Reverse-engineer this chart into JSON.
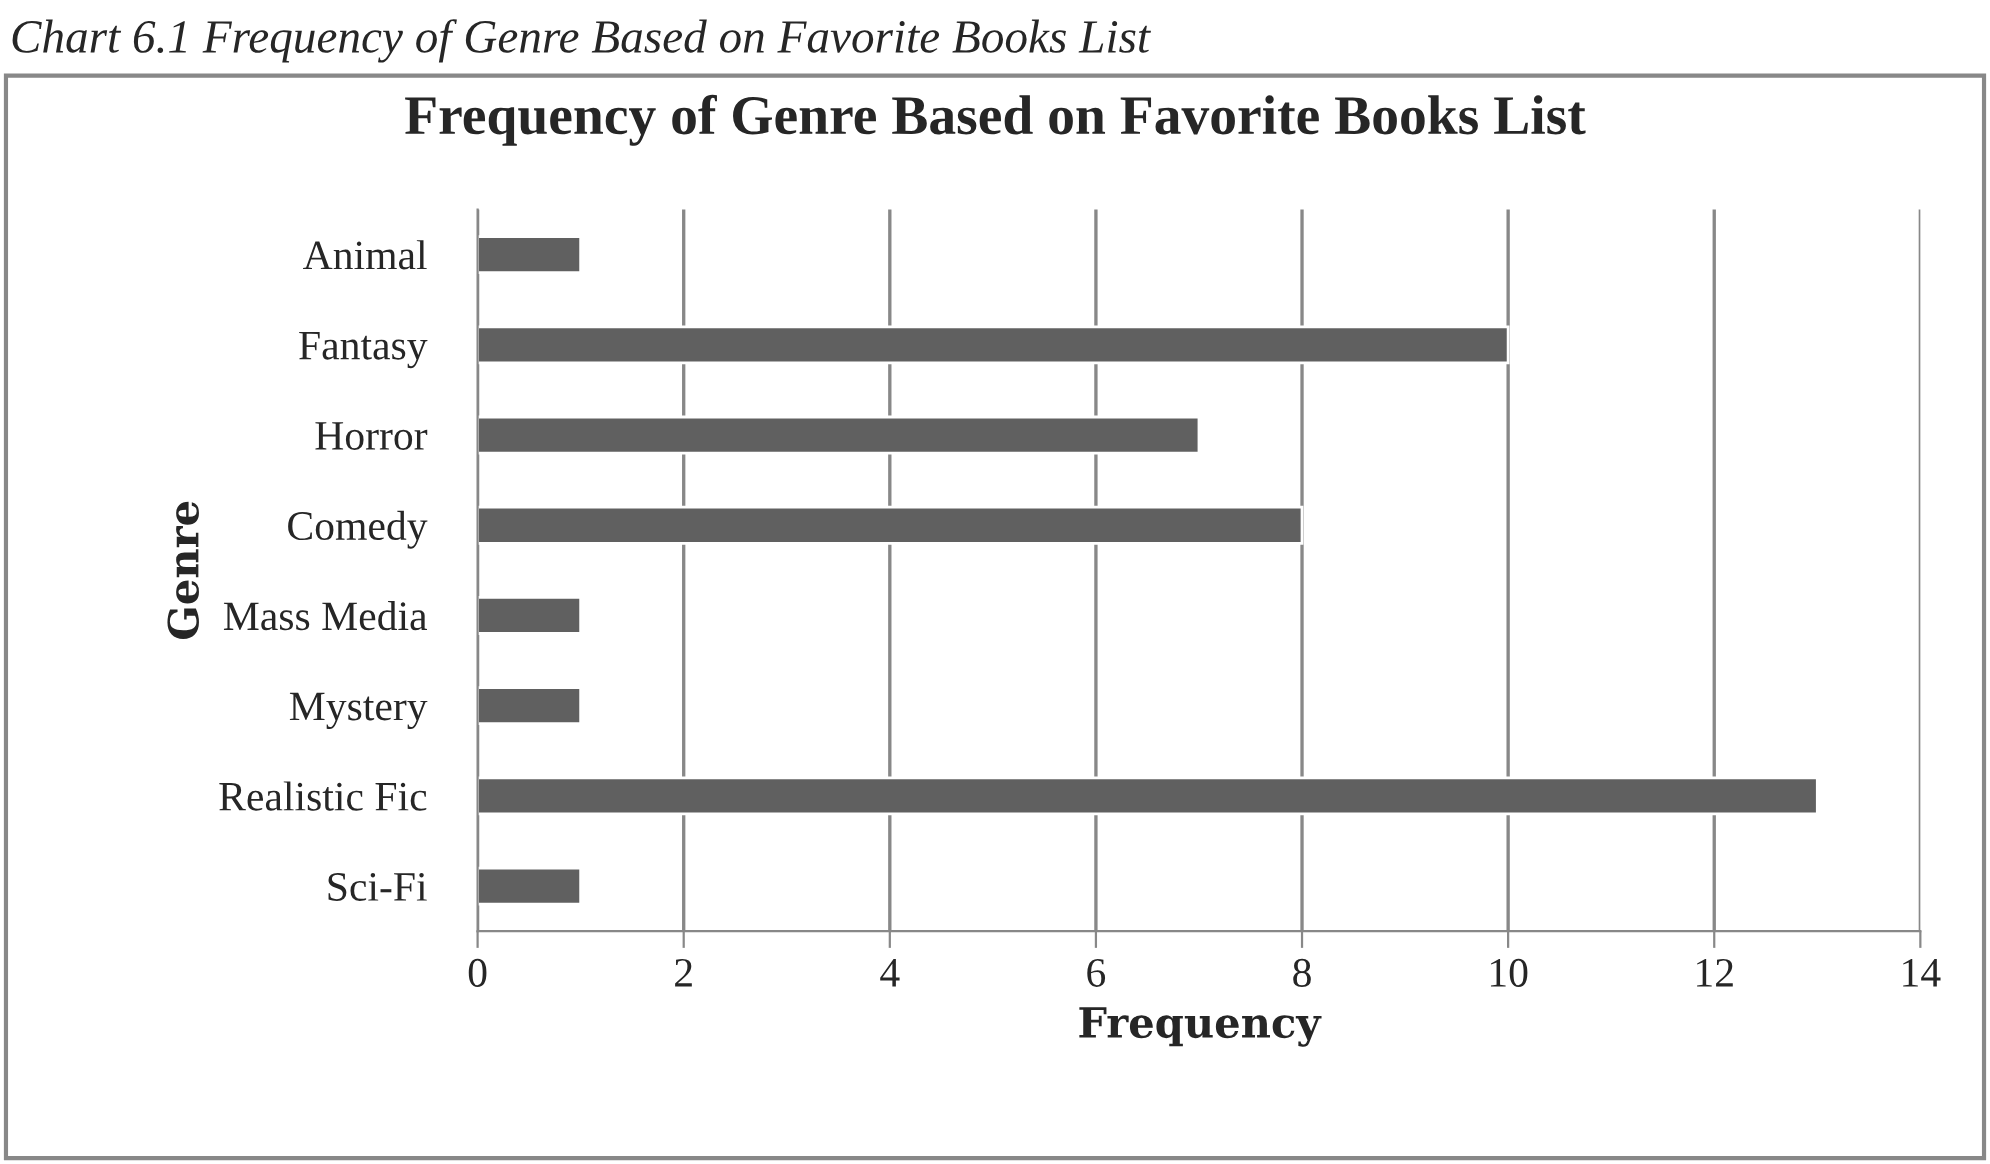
{
  "chart_data": {
    "type": "bar",
    "orientation": "horizontal",
    "title": "Frequency of Genre Based on Favorite Books List",
    "xlabel": "Frequency",
    "ylabel": "Genre",
    "annotations": [
      "Chart 6.1 Frequency of Genre Based on Favorite Books List"
    ],
    "categories": [
      "Animal",
      "Fantasy",
      "Horror",
      "Comedy",
      "Mass Media",
      "Mystery",
      "Realistic Fic",
      "Sci-Fi"
    ],
    "values": [
      1,
      10,
      7,
      8,
      1,
      1,
      13,
      1
    ],
    "color": "#606060",
    "xlim": [
      0,
      14
    ],
    "xticks": [
      0,
      2,
      4,
      6,
      8,
      10,
      12,
      14
    ],
    "grid": "x",
    "legend": false
  }
}
